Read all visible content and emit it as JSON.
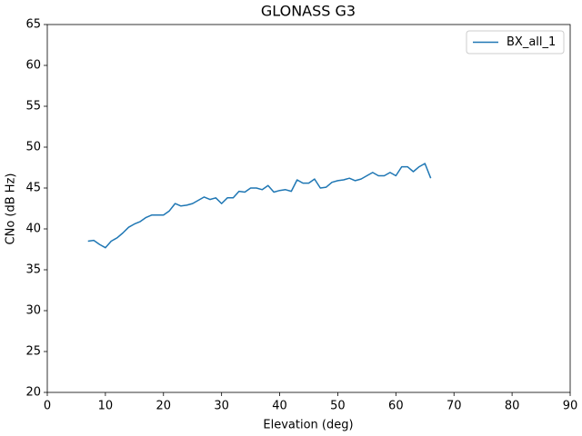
{
  "chart_data": {
    "type": "line",
    "title": "GLONASS G3",
    "x_label": "Elevation (deg)",
    "y_label": "CNo (dB Hz)",
    "x": [
      7,
      8,
      9,
      10,
      11,
      12,
      13,
      14,
      15,
      16,
      17,
      18,
      19,
      20,
      21,
      22,
      23,
      24,
      25,
      26,
      27,
      28,
      29,
      30,
      31,
      32,
      33,
      34,
      35,
      36,
      37,
      38,
      39,
      40,
      41,
      42,
      43,
      44,
      45,
      46,
      47,
      48,
      49,
      50,
      51,
      52,
      53,
      54,
      55,
      56,
      57,
      58,
      59,
      60,
      61,
      62,
      63,
      64,
      65,
      66
    ],
    "series": [
      {
        "name": "BX_all_1",
        "color": "#1f77b4",
        "values": [
          38.5,
          38.6,
          38.1,
          37.7,
          38.5,
          38.9,
          39.5,
          40.2,
          40.6,
          40.9,
          41.4,
          41.7,
          41.7,
          41.7,
          42.2,
          43.1,
          42.8,
          42.9,
          43.1,
          43.5,
          43.9,
          43.6,
          43.8,
          43.1,
          43.8,
          43.8,
          44.6,
          44.5,
          45.0,
          45.0,
          44.8,
          45.3,
          44.5,
          44.7,
          44.8,
          44.6,
          46.0,
          45.6,
          45.6,
          46.1,
          45.0,
          45.1,
          45.7,
          45.9,
          46.0,
          46.2,
          45.9,
          46.1,
          46.5,
          46.9,
          46.5,
          46.5,
          46.9,
          46.5,
          47.6,
          47.6,
          47.0,
          47.6,
          48.0,
          46.2
        ]
      }
    ],
    "xlim": [
      0,
      90
    ],
    "xticks": [
      0,
      10,
      20,
      30,
      40,
      50,
      60,
      70,
      80,
      90
    ],
    "ylim": [
      20,
      65
    ],
    "yticks": [
      20,
      25,
      30,
      35,
      40,
      45,
      50,
      55,
      60,
      65
    ],
    "legend": "upper right"
  }
}
